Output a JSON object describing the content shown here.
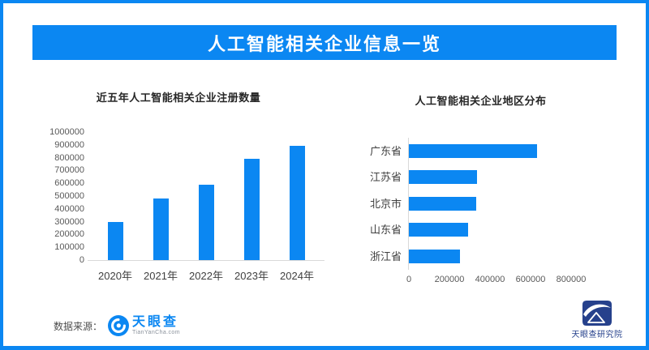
{
  "header": {
    "title": "人工智能相关企业信息一览"
  },
  "chart_data": [
    {
      "type": "bar",
      "title": "近五年人工智能相关企业注册数量",
      "categories": [
        "2020年",
        "2021年",
        "2022年",
        "2023年",
        "2024年"
      ],
      "values": [
        300000,
        480000,
        590000,
        790000,
        890000
      ],
      "xlabel": "",
      "ylabel": "",
      "ylim": [
        0,
        1000000
      ],
      "ytick_step": 100000,
      "grid": false,
      "legend": false,
      "bar_color": "#0b87f2"
    },
    {
      "type": "bar-horizontal",
      "title": "人工智能相关企业地区分布",
      "categories": [
        "广东省",
        "江苏省",
        "北京市",
        "山东省",
        "浙江省"
      ],
      "values": [
        630000,
        335000,
        330000,
        290000,
        250000
      ],
      "xlabel": "",
      "ylabel": "",
      "xlim": [
        0,
        800000
      ],
      "xtick_step": 200000,
      "grid": false,
      "legend": false,
      "bar_color": "#0b87f2"
    }
  ],
  "footer": {
    "source_label": "数据来源：",
    "brand": "天眼查",
    "brand_sub": "TianYanCha.com",
    "institute": "天眼查研究院"
  },
  "colors": {
    "accent": "#0b87f2",
    "axis_line": "#d9d9d9",
    "tick_text": "#595959",
    "category_text": "#404040",
    "title_text": "#262626",
    "navy": "#26418c"
  },
  "icons": {
    "brand_logo": "tianyancha-eye-icon",
    "institute_logo": "tianyancha-research-shield-icon"
  }
}
